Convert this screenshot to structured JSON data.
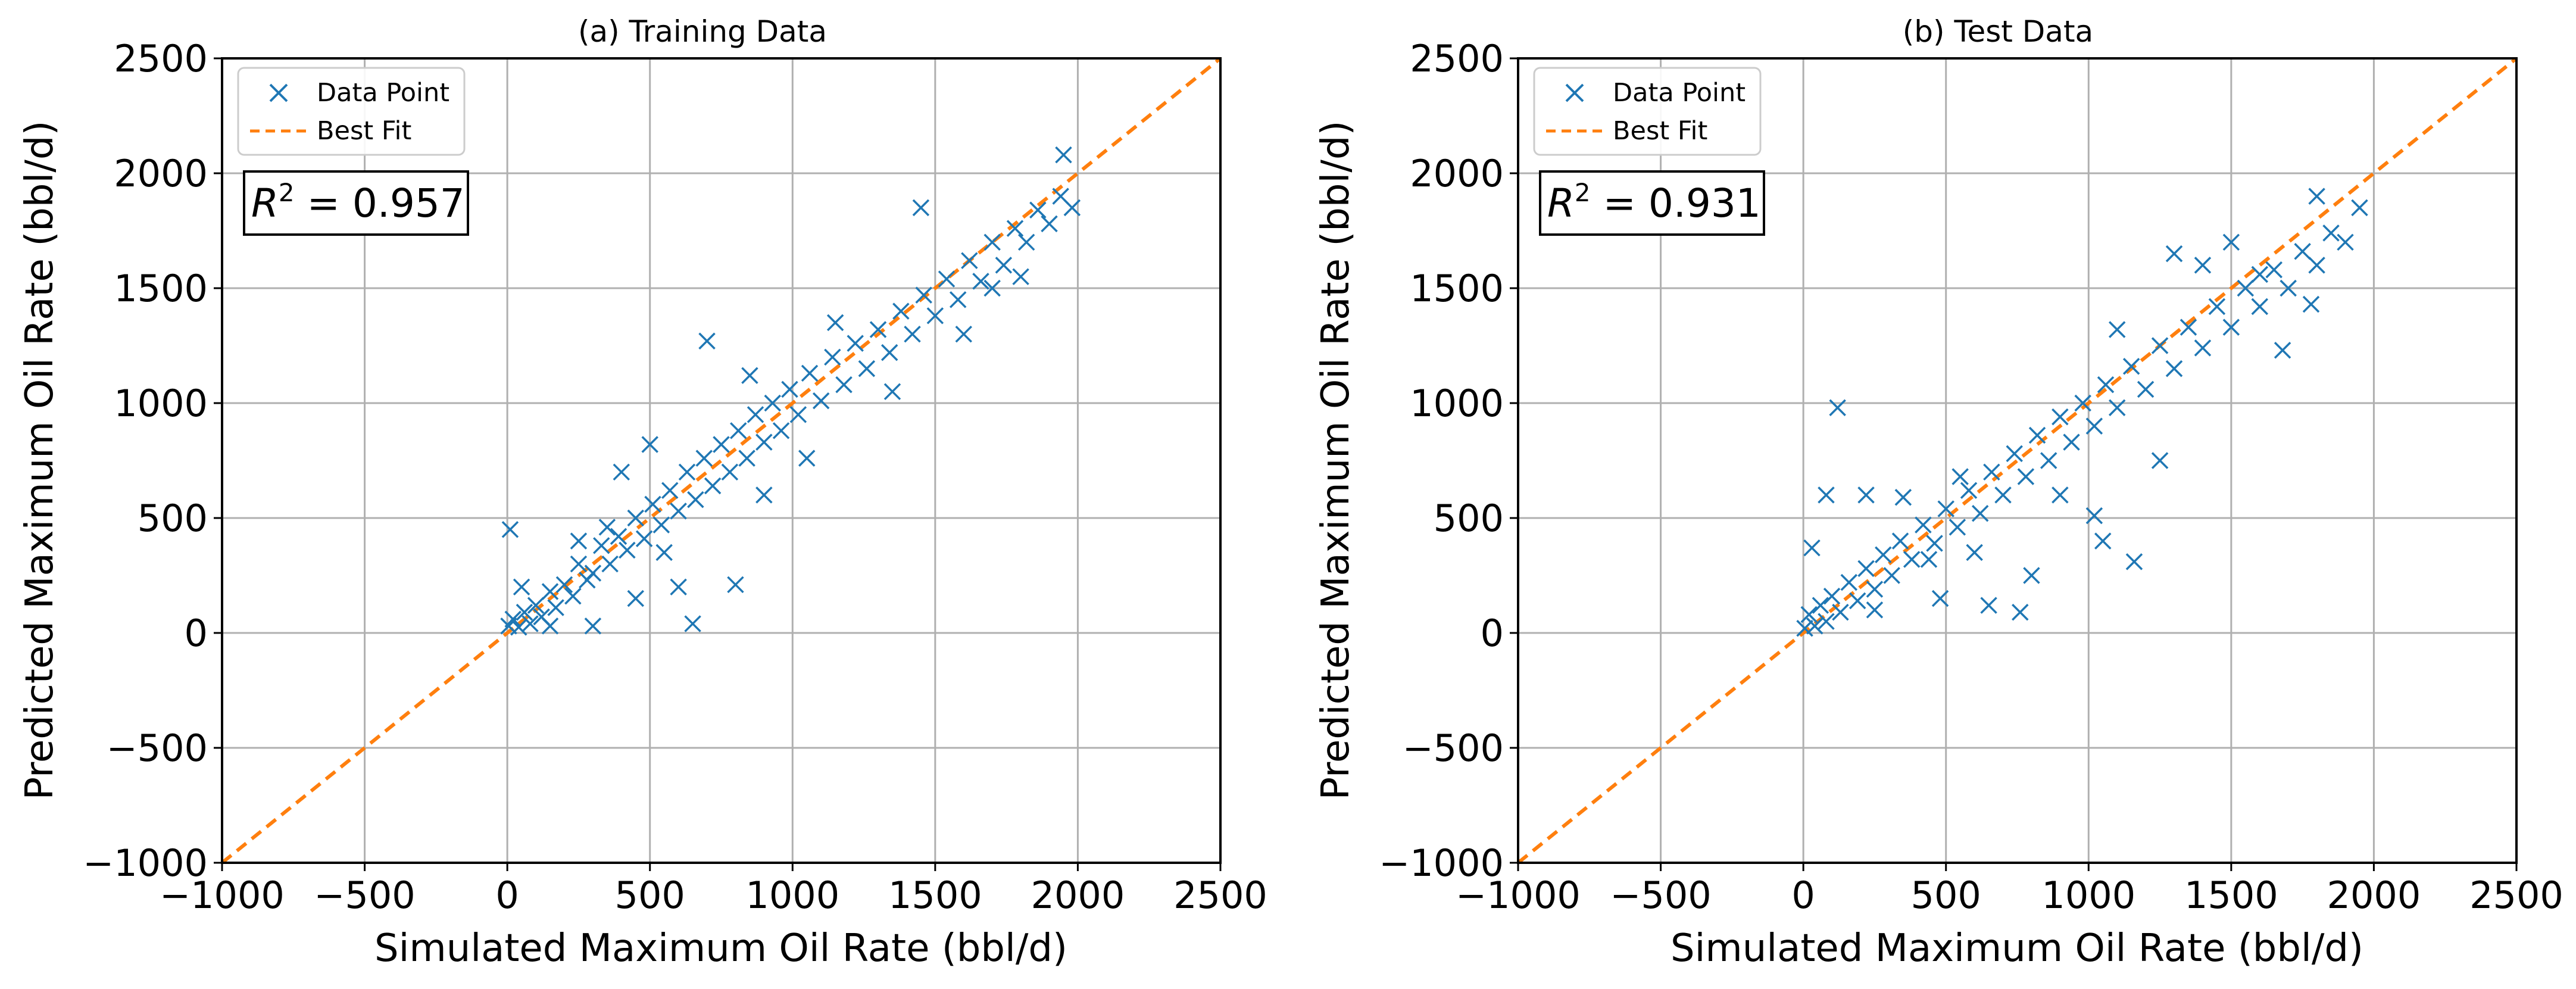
{
  "chart_data": [
    {
      "type": "scatter",
      "title": "(a) Training Data",
      "xlabel": "Simulated Maximum Oil Rate (bbl/d)",
      "ylabel": "Predicted Maximum Oil Rate (bbl/d)",
      "xlim": [
        -1000,
        2500
      ],
      "ylim": [
        -1000,
        2500
      ],
      "xticks": [
        "−1000",
        "−500",
        "0",
        "500",
        "1000",
        "1500",
        "2000",
        "2500"
      ],
      "yticks": [
        "−1000",
        "−500",
        "0",
        "500",
        "1000",
        "1500",
        "2000",
        "2500"
      ],
      "tick_values": [
        -1000,
        -500,
        0,
        500,
        1000,
        1500,
        2000,
        2500
      ],
      "grid": true,
      "legend": {
        "position": "top-left",
        "entries": [
          "Data Point",
          "Best Fit"
        ]
      },
      "annotation": {
        "r2_symbol": "R",
        "r2_exp": "2",
        "r2_text": " = 0.957"
      },
      "series": [
        {
          "name": "Data Point",
          "marker": "x",
          "color": "#1f77b4",
          "points": [
            [
              5,
              30
            ],
            [
              20,
              60
            ],
            [
              40,
              25
            ],
            [
              60,
              90
            ],
            [
              80,
              40
            ],
            [
              100,
              120
            ],
            [
              120,
              70
            ],
            [
              150,
              180
            ],
            [
              170,
              110
            ],
            [
              200,
              210
            ],
            [
              230,
              160
            ],
            [
              250,
              300
            ],
            [
              280,
              230
            ],
            [
              300,
              260
            ],
            [
              330,
              380
            ],
            [
              360,
              300
            ],
            [
              390,
              420
            ],
            [
              420,
              360
            ],
            [
              450,
              500
            ],
            [
              480,
              410
            ],
            [
              510,
              560
            ],
            [
              540,
              470
            ],
            [
              570,
              620
            ],
            [
              600,
              530
            ],
            [
              630,
              700
            ],
            [
              660,
              580
            ],
            [
              690,
              760
            ],
            [
              720,
              640
            ],
            [
              750,
              820
            ],
            [
              780,
              700
            ],
            [
              810,
              880
            ],
            [
              840,
              760
            ],
            [
              870,
              950
            ],
            [
              900,
              830
            ],
            [
              930,
              1000
            ],
            [
              960,
              880
            ],
            [
              990,
              1060
            ],
            [
              1020,
              950
            ],
            [
              1060,
              1130
            ],
            [
              1100,
              1010
            ],
            [
              1140,
              1200
            ],
            [
              1180,
              1080
            ],
            [
              1220,
              1260
            ],
            [
              1260,
              1150
            ],
            [
              1300,
              1320
            ],
            [
              1340,
              1220
            ],
            [
              1380,
              1400
            ],
            [
              1420,
              1300
            ],
            [
              1460,
              1470
            ],
            [
              1500,
              1380
            ],
            [
              1540,
              1540
            ],
            [
              1580,
              1450
            ],
            [
              1620,
              1620
            ],
            [
              1660,
              1530
            ],
            [
              1700,
              1700
            ],
            [
              1740,
              1600
            ],
            [
              1780,
              1760
            ],
            [
              1820,
              1700
            ],
            [
              1860,
              1840
            ],
            [
              1900,
              1780
            ],
            [
              1940,
              1900
            ],
            [
              1980,
              1850
            ],
            [
              1950,
              2080
            ],
            [
              1700,
              1500
            ],
            [
              1450,
              1850
            ],
            [
              1050,
              760
            ],
            [
              650,
              40
            ],
            [
              800,
              210
            ],
            [
              700,
              1270
            ],
            [
              500,
              820
            ],
            [
              400,
              700
            ],
            [
              600,
              200
            ],
            [
              350,
              460
            ],
            [
              300,
              30
            ],
            [
              10,
              450
            ],
            [
              50,
              200
            ],
            [
              150,
              30
            ],
            [
              250,
              400
            ],
            [
              850,
              1120
            ],
            [
              1150,
              1350
            ],
            [
              1350,
              1050
            ],
            [
              1600,
              1300
            ],
            [
              1800,
              1550
            ],
            [
              900,
              600
            ],
            [
              550,
              350
            ],
            [
              450,
              150
            ]
          ]
        },
        {
          "name": "Best Fit",
          "line": "dashed",
          "color": "#ff7f0e",
          "x": [
            -1000,
            2500
          ],
          "y": [
            -1000,
            2500
          ]
        }
      ]
    },
    {
      "type": "scatter",
      "title": "(b) Test Data",
      "xlabel": "Simulated Maximum Oil Rate (bbl/d)",
      "ylabel": "Predicted Maximum Oil Rate (bbl/d)",
      "xlim": [
        -1000,
        2500
      ],
      "ylim": [
        -1000,
        2500
      ],
      "xticks": [
        "−1000",
        "−500",
        "0",
        "500",
        "1000",
        "1500",
        "2000",
        "2500"
      ],
      "yticks": [
        "−1000",
        "−500",
        "0",
        "500",
        "1000",
        "1500",
        "2000",
        "2500"
      ],
      "tick_values": [
        -1000,
        -500,
        0,
        500,
        1000,
        1500,
        2000,
        2500
      ],
      "grid": true,
      "legend": {
        "position": "top-left",
        "entries": [
          "Data Point",
          "Best Fit"
        ]
      },
      "annotation": {
        "r2_symbol": "R",
        "r2_exp": "2",
        "r2_text": " = 0.931"
      },
      "series": [
        {
          "name": "Data Point",
          "marker": "x",
          "color": "#1f77b4",
          "points": [
            [
              5,
              20
            ],
            [
              20,
              80
            ],
            [
              40,
              30
            ],
            [
              60,
              120
            ],
            [
              80,
              50
            ],
            [
              100,
              160
            ],
            [
              130,
              90
            ],
            [
              160,
              220
            ],
            [
              190,
              140
            ],
            [
              220,
              280
            ],
            [
              250,
              190
            ],
            [
              280,
              340
            ],
            [
              310,
              250
            ],
            [
              340,
              400
            ],
            [
              380,
              320
            ],
            [
              420,
              470
            ],
            [
              460,
              390
            ],
            [
              500,
              540
            ],
            [
              540,
              460
            ],
            [
              580,
              620
            ],
            [
              620,
              520
            ],
            [
              660,
              700
            ],
            [
              700,
              600
            ],
            [
              740,
              780
            ],
            [
              780,
              680
            ],
            [
              820,
              860
            ],
            [
              860,
              750
            ],
            [
              900,
              940
            ],
            [
              940,
              830
            ],
            [
              980,
              1000
            ],
            [
              1020,
              900
            ],
            [
              1060,
              1080
            ],
            [
              1100,
              980
            ],
            [
              1150,
              1160
            ],
            [
              1200,
              1060
            ],
            [
              1250,
              1250
            ],
            [
              1300,
              1150
            ],
            [
              1350,
              1330
            ],
            [
              1400,
              1240
            ],
            [
              1450,
              1420
            ],
            [
              1500,
              1330
            ],
            [
              1550,
              1500
            ],
            [
              1600,
              1420
            ],
            [
              1650,
              1580
            ],
            [
              1700,
              1500
            ],
            [
              1750,
              1660
            ],
            [
              1800,
              1600
            ],
            [
              1850,
              1740
            ],
            [
              1900,
              1700
            ],
            [
              1950,
              1850
            ],
            [
              1800,
              1900
            ],
            [
              1780,
              1430
            ],
            [
              1680,
              1230
            ],
            [
              1300,
              1650
            ],
            [
              1160,
              310
            ],
            [
              1020,
              510
            ],
            [
              800,
              250
            ],
            [
              760,
              90
            ],
            [
              550,
              680
            ],
            [
              440,
              320
            ],
            [
              350,
              590
            ],
            [
              220,
              600
            ],
            [
              120,
              980
            ],
            [
              80,
              600
            ],
            [
              30,
              370
            ],
            [
              250,
              100
            ],
            [
              480,
              150
            ],
            [
              650,
              120
            ],
            [
              900,
              600
            ],
            [
              1100,
              1320
            ],
            [
              1400,
              1600
            ],
            [
              1250,
              750
            ],
            [
              1050,
              400
            ],
            [
              600,
              350
            ],
            [
              1500,
              1700
            ],
            [
              1600,
              1560
            ]
          ]
        },
        {
          "name": "Best Fit",
          "line": "dashed",
          "color": "#ff7f0e",
          "x": [
            -1000,
            2500
          ],
          "y": [
            -1000,
            2500
          ]
        }
      ]
    }
  ]
}
